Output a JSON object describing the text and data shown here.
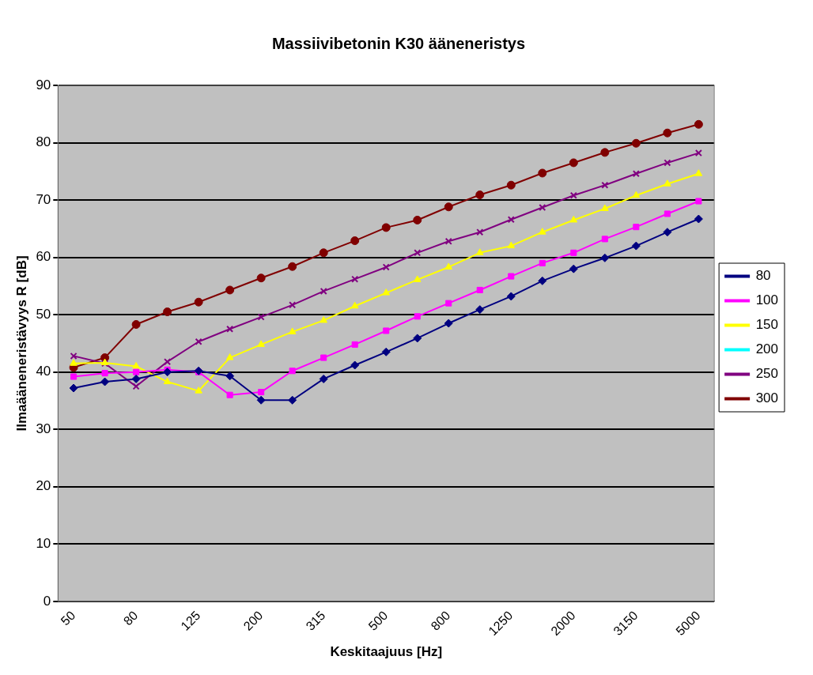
{
  "chart_data": {
    "type": "line",
    "title": "Massiivibetonin K30 ääneneristys",
    "xlabel": "Keskitaajuus [Hz]",
    "ylabel": "Ilmaääneneristävyys R [dB]",
    "categories": [
      "50",
      null,
      "80",
      null,
      "125",
      null,
      "200",
      null,
      "315",
      null,
      "500",
      null,
      "800",
      null,
      "1250",
      null,
      "2000",
      null,
      "3150",
      null,
      "5000"
    ],
    "ylim": [
      0,
      90
    ],
    "yticks": [
      0,
      10,
      20,
      30,
      40,
      50,
      60,
      70,
      80,
      90
    ],
    "grid": "y",
    "legend": "right",
    "series": [
      {
        "name": "80",
        "color": "#000080",
        "marker": "diamond",
        "values": [
          37.2,
          38.3,
          38.8,
          40.0,
          40.2,
          39.3,
          35.1,
          35.1,
          38.8,
          41.2,
          43.5,
          45.9,
          48.5,
          50.9,
          53.2,
          55.9,
          58.0,
          59.9,
          62.0,
          64.4,
          66.7
        ]
      },
      {
        "name": "100",
        "color": "#ff00ff",
        "marker": "square",
        "values": [
          39.2,
          39.8,
          40.0,
          40.4,
          40.0,
          36.0,
          36.5,
          40.2,
          42.5,
          44.8,
          47.2,
          49.7,
          52.0,
          54.3,
          56.7,
          59.0,
          60.8,
          63.2,
          65.3,
          67.6,
          69.8
        ]
      },
      {
        "name": "150",
        "color": "#ffff00",
        "marker": "triangle",
        "values": [
          41.5,
          41.6,
          41.0,
          38.3,
          36.7,
          42.5,
          44.8,
          47.0,
          49.0,
          51.5,
          53.8,
          56.1,
          58.3,
          60.8,
          62.0,
          64.4,
          66.5,
          68.5,
          70.8,
          72.8,
          74.6
        ]
      },
      {
        "name": "200",
        "color": "#00ffff",
        "marker": "cross",
        "values": [
          null,
          null,
          null,
          null,
          null,
          null,
          null,
          null,
          null,
          null,
          null,
          null,
          null,
          null,
          null,
          null,
          null,
          null,
          null,
          null,
          null
        ]
      },
      {
        "name": "250",
        "color": "#800080",
        "marker": "cross",
        "values": [
          42.8,
          41.5,
          37.5,
          41.8,
          45.3,
          47.5,
          49.6,
          51.7,
          54.1,
          56.2,
          58.3,
          60.8,
          62.8,
          64.4,
          66.6,
          68.7,
          70.8,
          72.6,
          74.6,
          76.5,
          78.2
        ]
      },
      {
        "name": "300",
        "color": "#800000",
        "marker": "circle",
        "values": [
          40.8,
          42.5,
          48.3,
          50.5,
          52.2,
          54.3,
          56.4,
          58.4,
          60.8,
          62.9,
          65.2,
          66.5,
          68.8,
          70.9,
          72.6,
          74.7,
          76.5,
          78.3,
          79.9,
          81.7,
          83.2
        ]
      }
    ]
  }
}
